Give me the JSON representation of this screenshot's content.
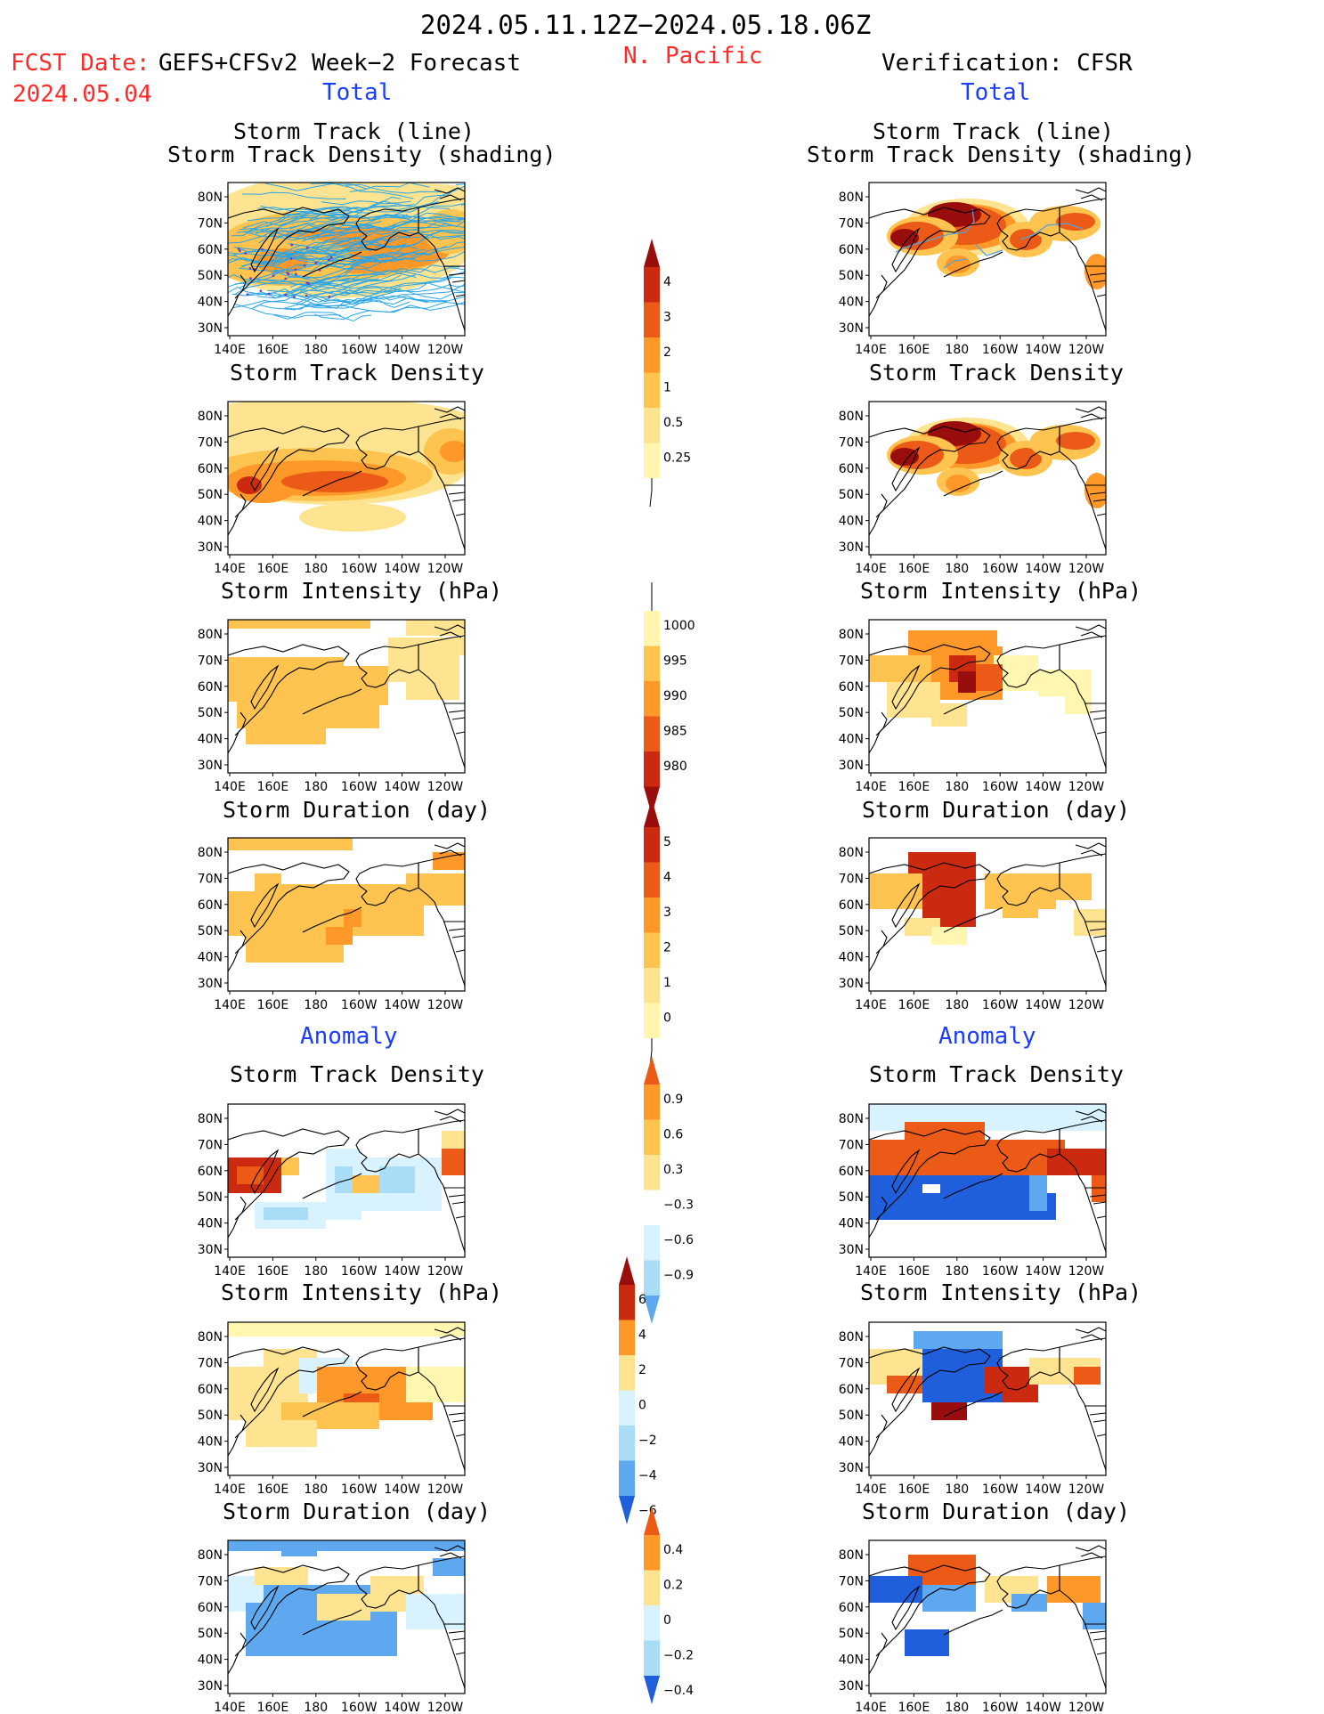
{
  "header": {
    "date_range": "2024.05.11.12Z−2024.05.18.06Z",
    "fcst_label": "FCST Date:",
    "fcst_model": "GEFS+CFSv2 Week−2 Forecast",
    "fcst_date": "2024.05.04",
    "region": "N. Pacific",
    "verification": "Verification: CFSR"
  },
  "sections": {
    "left_total": "Total",
    "right_total": "Total",
    "left_anomaly": "Anomaly",
    "right_anomaly": "Anomaly"
  },
  "panel_titles": {
    "track_line": "Storm Track (line)",
    "track_shading": "Storm Track Density (shading)",
    "density": "Storm Track Density",
    "intensity": "Storm Intensity (hPa)",
    "duration": "Storm Duration (day)"
  },
  "axes": {
    "lon_ticks": [
      "140E",
      "160E",
      "180",
      "160W",
      "140W",
      "120W"
    ],
    "lat_ticks": [
      "80N",
      "70N",
      "60N",
      "50N",
      "40N",
      "30N"
    ]
  },
  "colorbars": {
    "density_total": [
      "4",
      "3",
      "2",
      "1",
      "0.5",
      "0.25"
    ],
    "intensity_total": [
      "1000",
      "995",
      "990",
      "985",
      "980"
    ],
    "duration_total": [
      "5",
      "4",
      "3",
      "2",
      "1",
      "0"
    ],
    "density_anom": [
      "0.9",
      "0.6",
      "0.3",
      "−0.3",
      "−0.6",
      "−0.9"
    ],
    "intensity_anom": [
      "6",
      "4",
      "2",
      "0",
      "−2",
      "−4",
      "−6"
    ],
    "duration_anom": [
      "0.4",
      "0.2",
      "0",
      "−0.2",
      "−0.4"
    ]
  },
  "colors": {
    "c1": "#fff7b0",
    "c2": "#fee391",
    "c3": "#fec44f",
    "c4": "#fe9929",
    "c5": "#ec5a17",
    "c6": "#cc2a10",
    "c7": "#9a0d0d",
    "n1": "#d8f2ff",
    "n2": "#a9dcf7",
    "n3": "#5ea8ef",
    "n4": "#1f5fdc",
    "track": "#2aa5e6"
  }
}
